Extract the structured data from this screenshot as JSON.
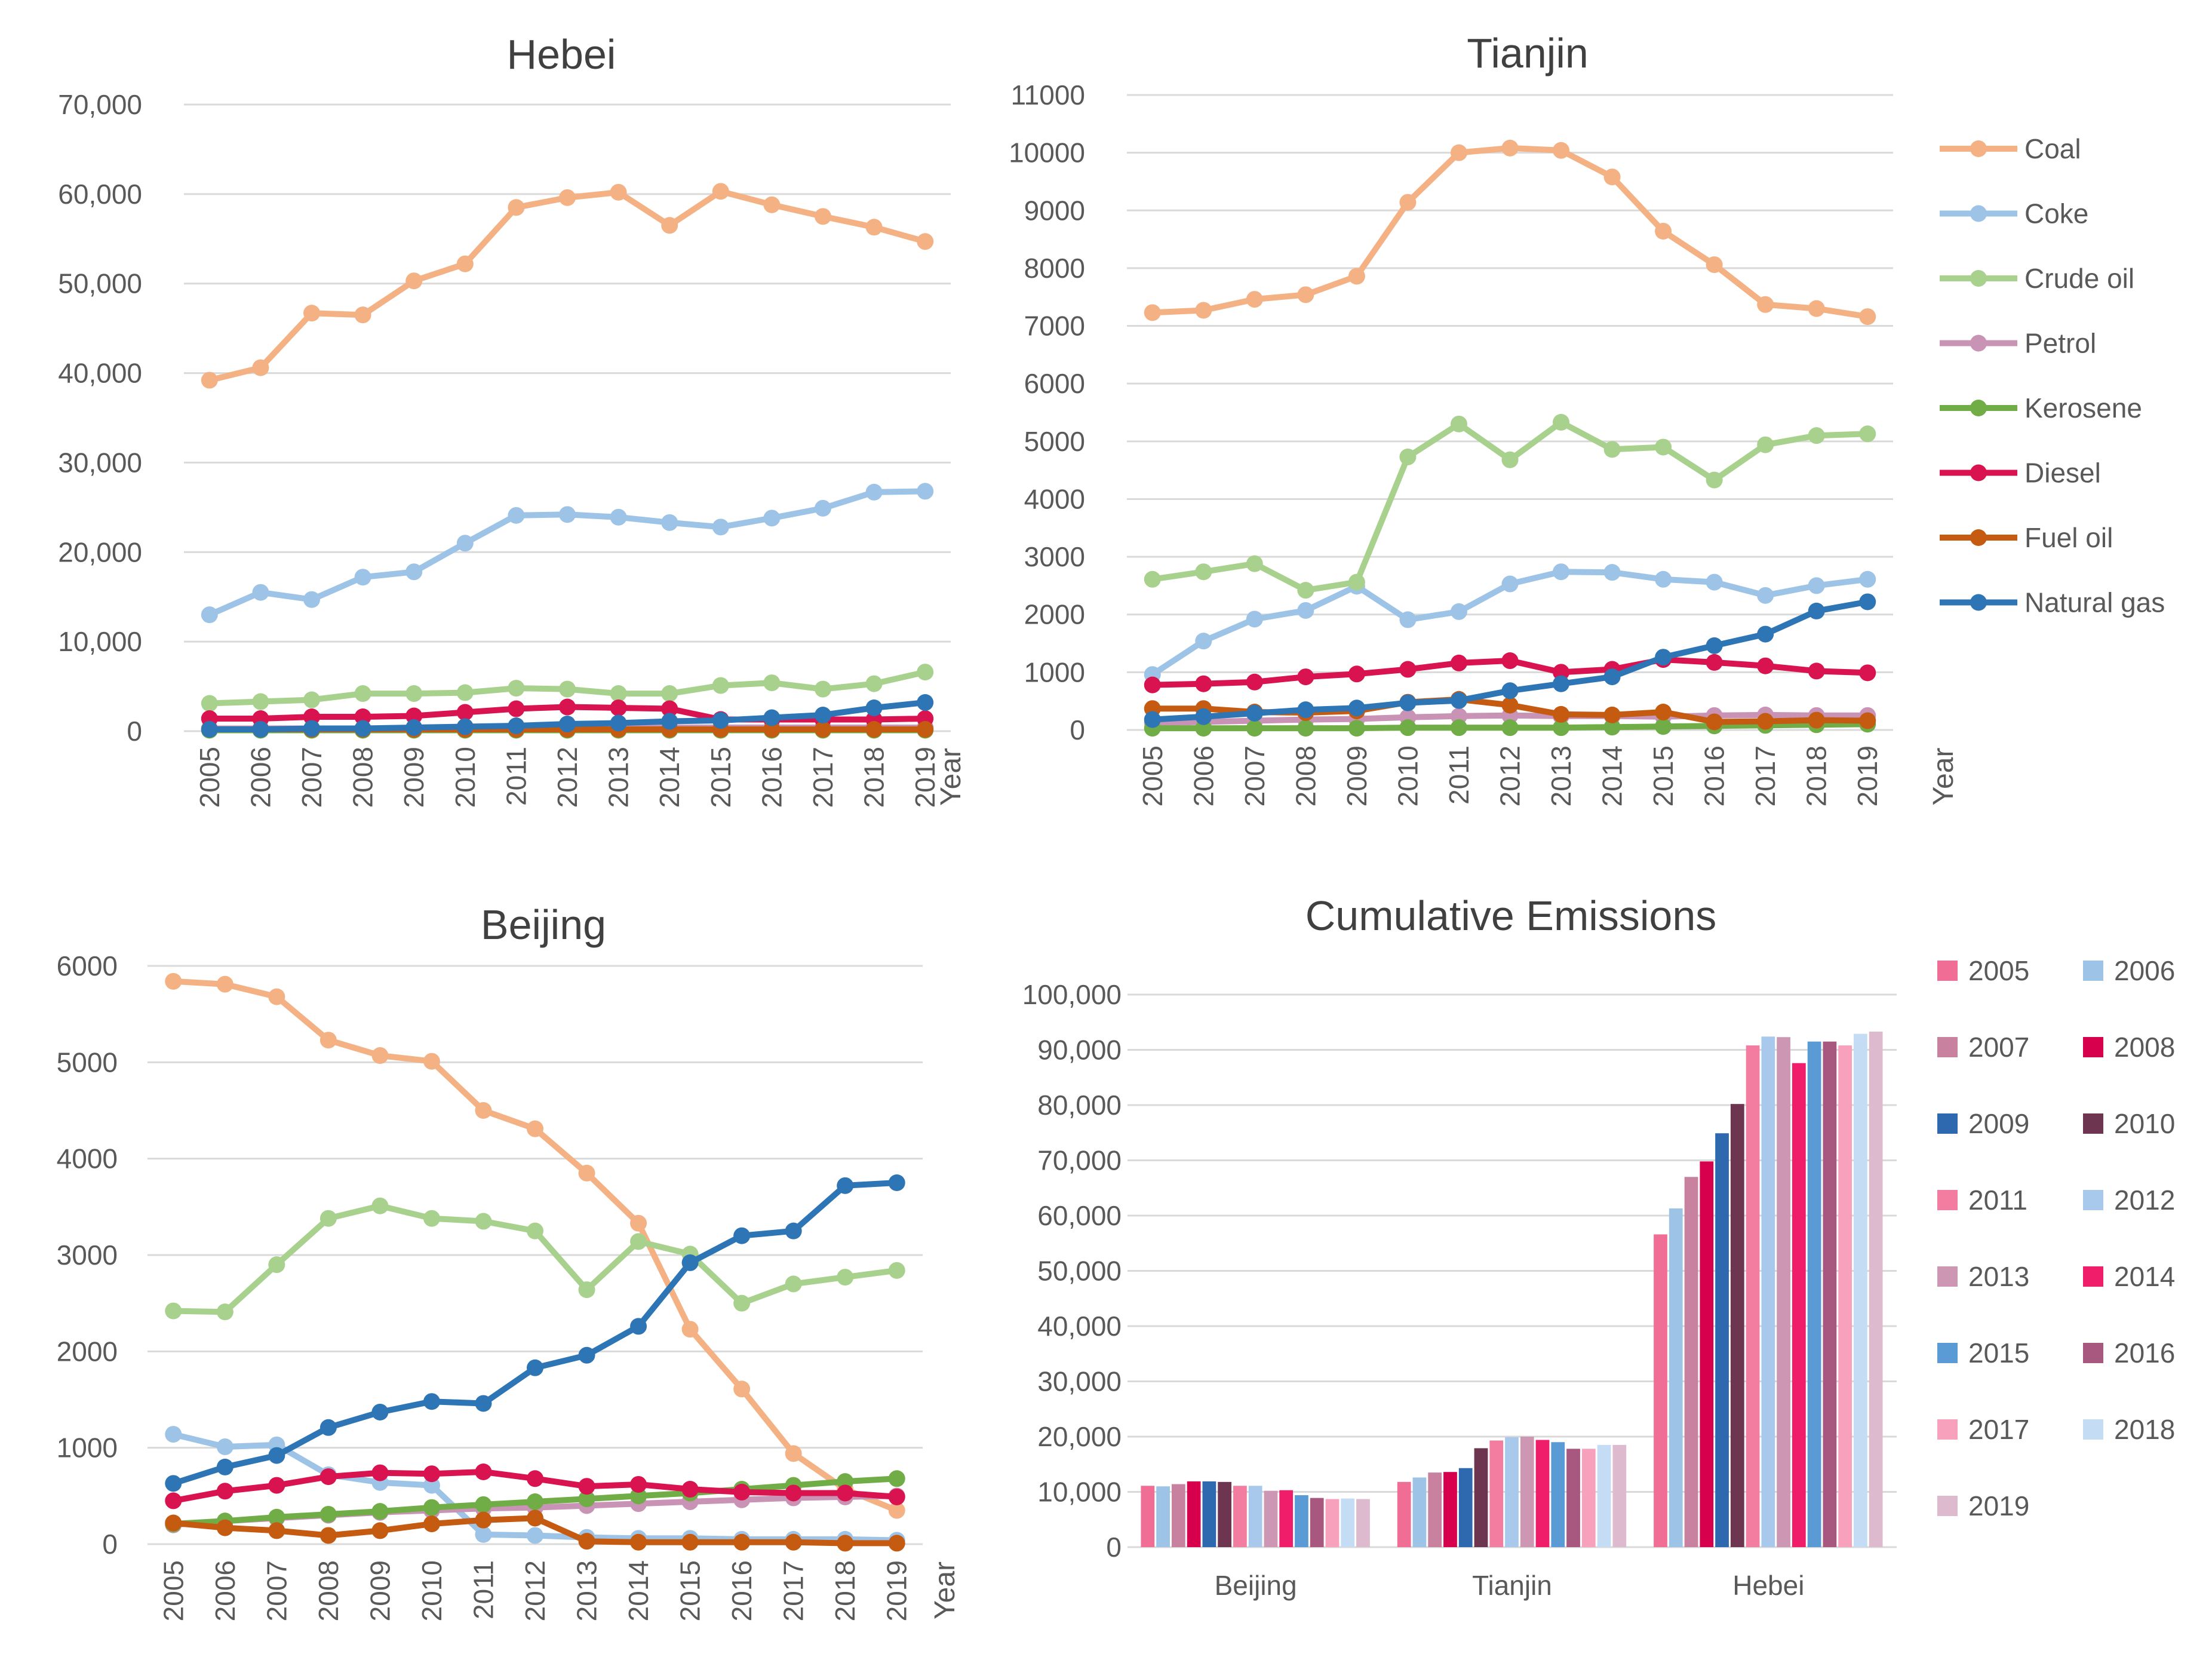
{
  "series_styles": [
    {
      "name": "Coal",
      "color": "#F4B183"
    },
    {
      "name": "Coke",
      "color": "#9DC3E6"
    },
    {
      "name": "Crude oil",
      "color": "#A9D18E"
    },
    {
      "name": "Petrol",
      "color": "#C893B4"
    },
    {
      "name": "Kerosene",
      "color": "#70AD47"
    },
    {
      "name": "Diesel",
      "color": "#D9134F"
    },
    {
      "name": "Fuel oil",
      "color": "#C55A11"
    },
    {
      "name": "Natural gas",
      "color": "#2E75B6"
    }
  ],
  "chart_data": [
    {
      "type": "line",
      "title": "Hebei",
      "xlabel": "Year",
      "ylabel": "",
      "x": [
        "2005",
        "2006",
        "2007",
        "2008",
        "2009",
        "2010",
        "2011",
        "2012",
        "2013",
        "2014",
        "2015",
        "2016",
        "2017",
        "2018",
        "2019"
      ],
      "ylim": [
        0,
        70000
      ],
      "yticks": [
        "0",
        "10,000",
        "20,000",
        "30,000",
        "40,000",
        "50,000",
        "60,000",
        "70,000"
      ],
      "grid": true,
      "series": [
        {
          "name": "Coal",
          "values": [
            39200,
            40600,
            46700,
            46500,
            50300,
            52200,
            58500,
            59600,
            60200,
            56500,
            60300,
            58800,
            57500,
            56300,
            54700
          ]
        },
        {
          "name": "Coke",
          "values": [
            13000,
            15500,
            14700,
            17200,
            17800,
            21000,
            24100,
            24200,
            23900,
            23300,
            22800,
            23800,
            24900,
            26700,
            26800
          ]
        },
        {
          "name": "Crude oil",
          "values": [
            3100,
            3300,
            3500,
            4200,
            4200,
            4300,
            4800,
            4700,
            4200,
            4200,
            5100,
            5400,
            4700,
            5300,
            6600
          ]
        },
        {
          "name": "Petrol",
          "values": [
            300,
            300,
            300,
            300,
            300,
            300,
            400,
            400,
            400,
            400,
            400,
            400,
            400,
            400,
            400
          ]
        },
        {
          "name": "Kerosene",
          "values": [
            100,
            100,
            100,
            100,
            100,
            100,
            100,
            100,
            100,
            100,
            100,
            100,
            100,
            100,
            100
          ]
        },
        {
          "name": "Diesel",
          "values": [
            1400,
            1400,
            1600,
            1600,
            1700,
            2100,
            2500,
            2700,
            2600,
            2500,
            1300,
            1300,
            1300,
            1300,
            1400
          ]
        },
        {
          "name": "Fuel oil",
          "values": [
            200,
            200,
            200,
            200,
            200,
            200,
            200,
            200,
            200,
            200,
            200,
            200,
            200,
            200,
            200
          ]
        },
        {
          "name": "Natural gas",
          "values": [
            200,
            200,
            300,
            300,
            400,
            500,
            600,
            800,
            900,
            1100,
            1200,
            1500,
            1800,
            2600,
            3200
          ]
        }
      ]
    },
    {
      "type": "line",
      "title": "Tianjin",
      "xlabel": "Year",
      "ylabel": "",
      "x": [
        "2005",
        "2006",
        "2007",
        "2008",
        "2009",
        "2010",
        "2011",
        "2012",
        "2013",
        "2014",
        "2015",
        "2016",
        "2017",
        "2018",
        "2019"
      ],
      "ylim": [
        0,
        11000
      ],
      "yticks": [
        "0",
        "1000",
        "2000",
        "3000",
        "4000",
        "5000",
        "6000",
        "7000",
        "8000",
        "9000",
        "10000",
        "11000"
      ],
      "grid": true,
      "legend": "right",
      "series": [
        {
          "name": "Coal",
          "values": [
            7230,
            7270,
            7460,
            7540,
            7860,
            9140,
            10000,
            10080,
            10040,
            9580,
            8640,
            8060,
            7370,
            7300,
            7160
          ]
        },
        {
          "name": "Coke",
          "values": [
            960,
            1540,
            1920,
            2070,
            2490,
            1910,
            2050,
            2530,
            2740,
            2730,
            2610,
            2560,
            2330,
            2500,
            2610
          ]
        },
        {
          "name": "Crude oil",
          "values": [
            2610,
            2740,
            2880,
            2420,
            2560,
            4730,
            5300,
            4680,
            5330,
            4860,
            4900,
            4330,
            4940,
            5100,
            5130
          ]
        },
        {
          "name": "Petrol",
          "values": [
            120,
            140,
            160,
            180,
            190,
            220,
            240,
            250,
            240,
            240,
            230,
            250,
            260,
            250,
            250
          ]
        },
        {
          "name": "Kerosene",
          "values": [
            30,
            30,
            30,
            30,
            30,
            40,
            40,
            40,
            40,
            50,
            60,
            70,
            80,
            90,
            100
          ]
        },
        {
          "name": "Diesel",
          "values": [
            780,
            800,
            830,
            920,
            970,
            1050,
            1160,
            1200,
            1000,
            1050,
            1220,
            1170,
            1110,
            1020,
            990
          ]
        },
        {
          "name": "Fuel oil",
          "values": [
            370,
            370,
            310,
            300,
            330,
            480,
            530,
            430,
            270,
            260,
            310,
            140,
            150,
            170,
            160
          ]
        },
        {
          "name": "Natural gas",
          "values": [
            180,
            230,
            290,
            350,
            380,
            470,
            510,
            680,
            800,
            920,
            1260,
            1460,
            1660,
            2060,
            2220
          ]
        }
      ]
    },
    {
      "type": "line",
      "title": "Beijing",
      "xlabel": "Year",
      "ylabel": "",
      "x": [
        "2005",
        "2006",
        "2007",
        "2008",
        "2009",
        "2010",
        "2011",
        "2012",
        "2013",
        "2014",
        "2015",
        "2016",
        "2017",
        "2018",
        "2019"
      ],
      "ylim": [
        0,
        6000
      ],
      "yticks": [
        "0",
        "1000",
        "2000",
        "3000",
        "4000",
        "5000",
        "6000"
      ],
      "grid": true,
      "series": [
        {
          "name": "Coal",
          "values": [
            5840,
            5810,
            5680,
            5230,
            5070,
            5010,
            4500,
            4310,
            3850,
            3330,
            2230,
            1610,
            940,
            570,
            350
          ]
        },
        {
          "name": "Coke",
          "values": [
            1140,
            1010,
            1030,
            720,
            640,
            610,
            100,
            90,
            70,
            60,
            60,
            50,
            50,
            50,
            40
          ]
        },
        {
          "name": "Crude oil",
          "values": [
            2420,
            2410,
            2900,
            3380,
            3510,
            3380,
            3350,
            3250,
            2640,
            3140,
            3010,
            2500,
            2700,
            2770,
            2840
          ]
        },
        {
          "name": "Petrol",
          "values": [
            200,
            240,
            270,
            300,
            330,
            350,
            370,
            380,
            400,
            420,
            440,
            460,
            480,
            490,
            500
          ]
        },
        {
          "name": "Kerosene",
          "values": [
            210,
            240,
            280,
            310,
            340,
            380,
            410,
            440,
            470,
            500,
            530,
            570,
            610,
            650,
            680
          ]
        },
        {
          "name": "Diesel",
          "values": [
            450,
            550,
            610,
            700,
            740,
            730,
            750,
            680,
            600,
            620,
            570,
            540,
            530,
            530,
            490
          ]
        },
        {
          "name": "Fuel oil",
          "values": [
            220,
            170,
            140,
            90,
            140,
            210,
            250,
            270,
            30,
            20,
            20,
            20,
            20,
            10,
            10
          ]
        },
        {
          "name": "Natural gas",
          "values": [
            630,
            800,
            920,
            1210,
            1370,
            1480,
            1460,
            1830,
            1960,
            2260,
            2920,
            3200,
            3250,
            3720,
            3750
          ]
        }
      ]
    },
    {
      "type": "bar",
      "title": "Cumulative  Emissions",
      "xlabel": "",
      "ylabel": "",
      "categories": [
        "Beijing",
        "Tianjin",
        "Hebei"
      ],
      "ylim": [
        0,
        100000
      ],
      "yticks": [
        "0",
        "10,000",
        "20,000",
        "30,000",
        "40,000",
        "50,000",
        "60,000",
        "70,000",
        "80,000",
        "90,000",
        "100,000"
      ],
      "grid": true,
      "legend": "right",
      "series": [
        {
          "name": "2005",
          "color": "#F06E95",
          "values": [
            11100,
            11800,
            56600
          ]
        },
        {
          "name": "2006",
          "color": "#9DC3E6",
          "values": [
            11000,
            12600,
            61300
          ]
        },
        {
          "name": "2007",
          "color": "#C8819F",
          "values": [
            11400,
            13500,
            67000
          ]
        },
        {
          "name": "2008",
          "color": "#D6004C",
          "values": [
            11900,
            13600,
            69800
          ]
        },
        {
          "name": "2009",
          "color": "#2E68AF",
          "values": [
            11900,
            14300,
            74900
          ]
        },
        {
          "name": "2010",
          "color": "#6E3550",
          "values": [
            11800,
            17900,
            80200
          ]
        },
        {
          "name": "2011",
          "color": "#F27DA0",
          "values": [
            11100,
            19300,
            90800
          ]
        },
        {
          "name": "2012",
          "color": "#A9C9EC",
          "values": [
            11100,
            19900,
            92400
          ]
        },
        {
          "name": "2013",
          "color": "#CD97B3",
          "values": [
            10200,
            20000,
            92300
          ]
        },
        {
          "name": "2014",
          "color": "#F01D6A",
          "values": [
            10300,
            19400,
            87600
          ]
        },
        {
          "name": "2015",
          "color": "#5B9BD5",
          "values": [
            9400,
            19000,
            91500
          ]
        },
        {
          "name": "2016",
          "color": "#A8577F",
          "values": [
            8900,
            17800,
            91500
          ]
        },
        {
          "name": "2017",
          "color": "#F7A1BC",
          "values": [
            8700,
            17800,
            90800
          ]
        },
        {
          "name": "2018",
          "color": "#C5DDF4",
          "values": [
            8800,
            18500,
            92900
          ]
        },
        {
          "name": "2019",
          "color": "#DDBACD",
          "values": [
            8700,
            18500,
            93300
          ]
        }
      ]
    }
  ]
}
